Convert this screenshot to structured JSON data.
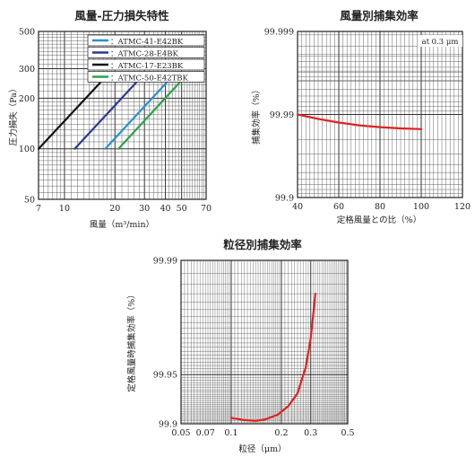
{
  "chart_data": [
    {
      "type": "line",
      "title": "風量-圧力損失特性",
      "xlabel": "風量（m³/min）",
      "ylabel": "圧力損失（Pa）",
      "xscale": "log",
      "yscale": "log",
      "xlim": [
        7,
        70
      ],
      "ylim": [
        50,
        500
      ],
      "xticks": [
        "7",
        "10",
        "20",
        "30",
        "40",
        "50",
        "70"
      ],
      "xtick_values": [
        7,
        10,
        20,
        30,
        40,
        50,
        70
      ],
      "yticks": [
        "50",
        "100",
        "200",
        "300",
        "500"
      ],
      "ytick_values": [
        50,
        100,
        200,
        300,
        500
      ],
      "legend_position": "top-right",
      "series": [
        {
          "name": "：ATMC-41-E42BK",
          "color": "#2a8fd0",
          "x": [
            17.5,
            41
          ],
          "y": [
            100,
            250
          ]
        },
        {
          "name": "：ATMC-28-E4BK",
          "color": "#2a3b8f",
          "x": [
            11.5,
            27
          ],
          "y": [
            100,
            250
          ]
        },
        {
          "name": "：ATMC-17-E23BK",
          "color": "#111111",
          "x": [
            7,
            16.5
          ],
          "y": [
            100,
            250
          ]
        },
        {
          "name": "：ATMC-50-E42TBK",
          "color": "#2aa24a",
          "x": [
            21,
            49
          ],
          "y": [
            100,
            250
          ]
        }
      ]
    },
    {
      "type": "line",
      "title": "風量別捕集効率",
      "xlabel": "定格風量との比（%）",
      "ylabel": "捕集効率（%）",
      "annotation": "at 0.3 μm",
      "xlim": [
        40,
        120
      ],
      "ylim": [
        99.9,
        99.999
      ],
      "xticks": [
        "40",
        "60",
        "80",
        "100",
        "120"
      ],
      "xtick_values": [
        40,
        60,
        80,
        100,
        120
      ],
      "yticks": [
        "99.9",
        "99.99",
        "99.999"
      ],
      "ytick_values": [
        99.9,
        99.99,
        99.999
      ],
      "series": [
        {
          "color": "#e02020",
          "x": [
            40,
            50,
            60,
            70,
            80,
            90,
            100
          ],
          "y": [
            99.99,
            99.9887,
            99.9875,
            99.9865,
            99.9858,
            99.9853,
            99.985
          ]
        }
      ]
    },
    {
      "type": "line",
      "title": "粒径別捕集効率",
      "xlabel": "粒径（μm）",
      "ylabel": "定格風量時捕集効率（%）",
      "xscale": "log",
      "xlim": [
        0.05,
        0.5
      ],
      "ylim": [
        99.9,
        99.99
      ],
      "xticks": [
        "0.05",
        "0.07",
        "0.1",
        "0.2",
        "0.3",
        "0.5"
      ],
      "xtick_values": [
        0.05,
        0.07,
        0.1,
        0.2,
        0.3,
        0.5
      ],
      "yticks": [
        "99.9",
        "99.95",
        "99.99"
      ],
      "ytick_values": [
        99.9,
        99.95,
        99.99
      ],
      "series": [
        {
          "color": "#e02020",
          "x": [
            0.1,
            0.12,
            0.14,
            0.16,
            0.19,
            0.22,
            0.25,
            0.28,
            0.3,
            0.32
          ],
          "y": [
            99.908,
            99.905,
            99.904,
            99.906,
            99.912,
            99.922,
            99.935,
            99.955,
            99.97,
            99.984
          ]
        }
      ]
    }
  ]
}
